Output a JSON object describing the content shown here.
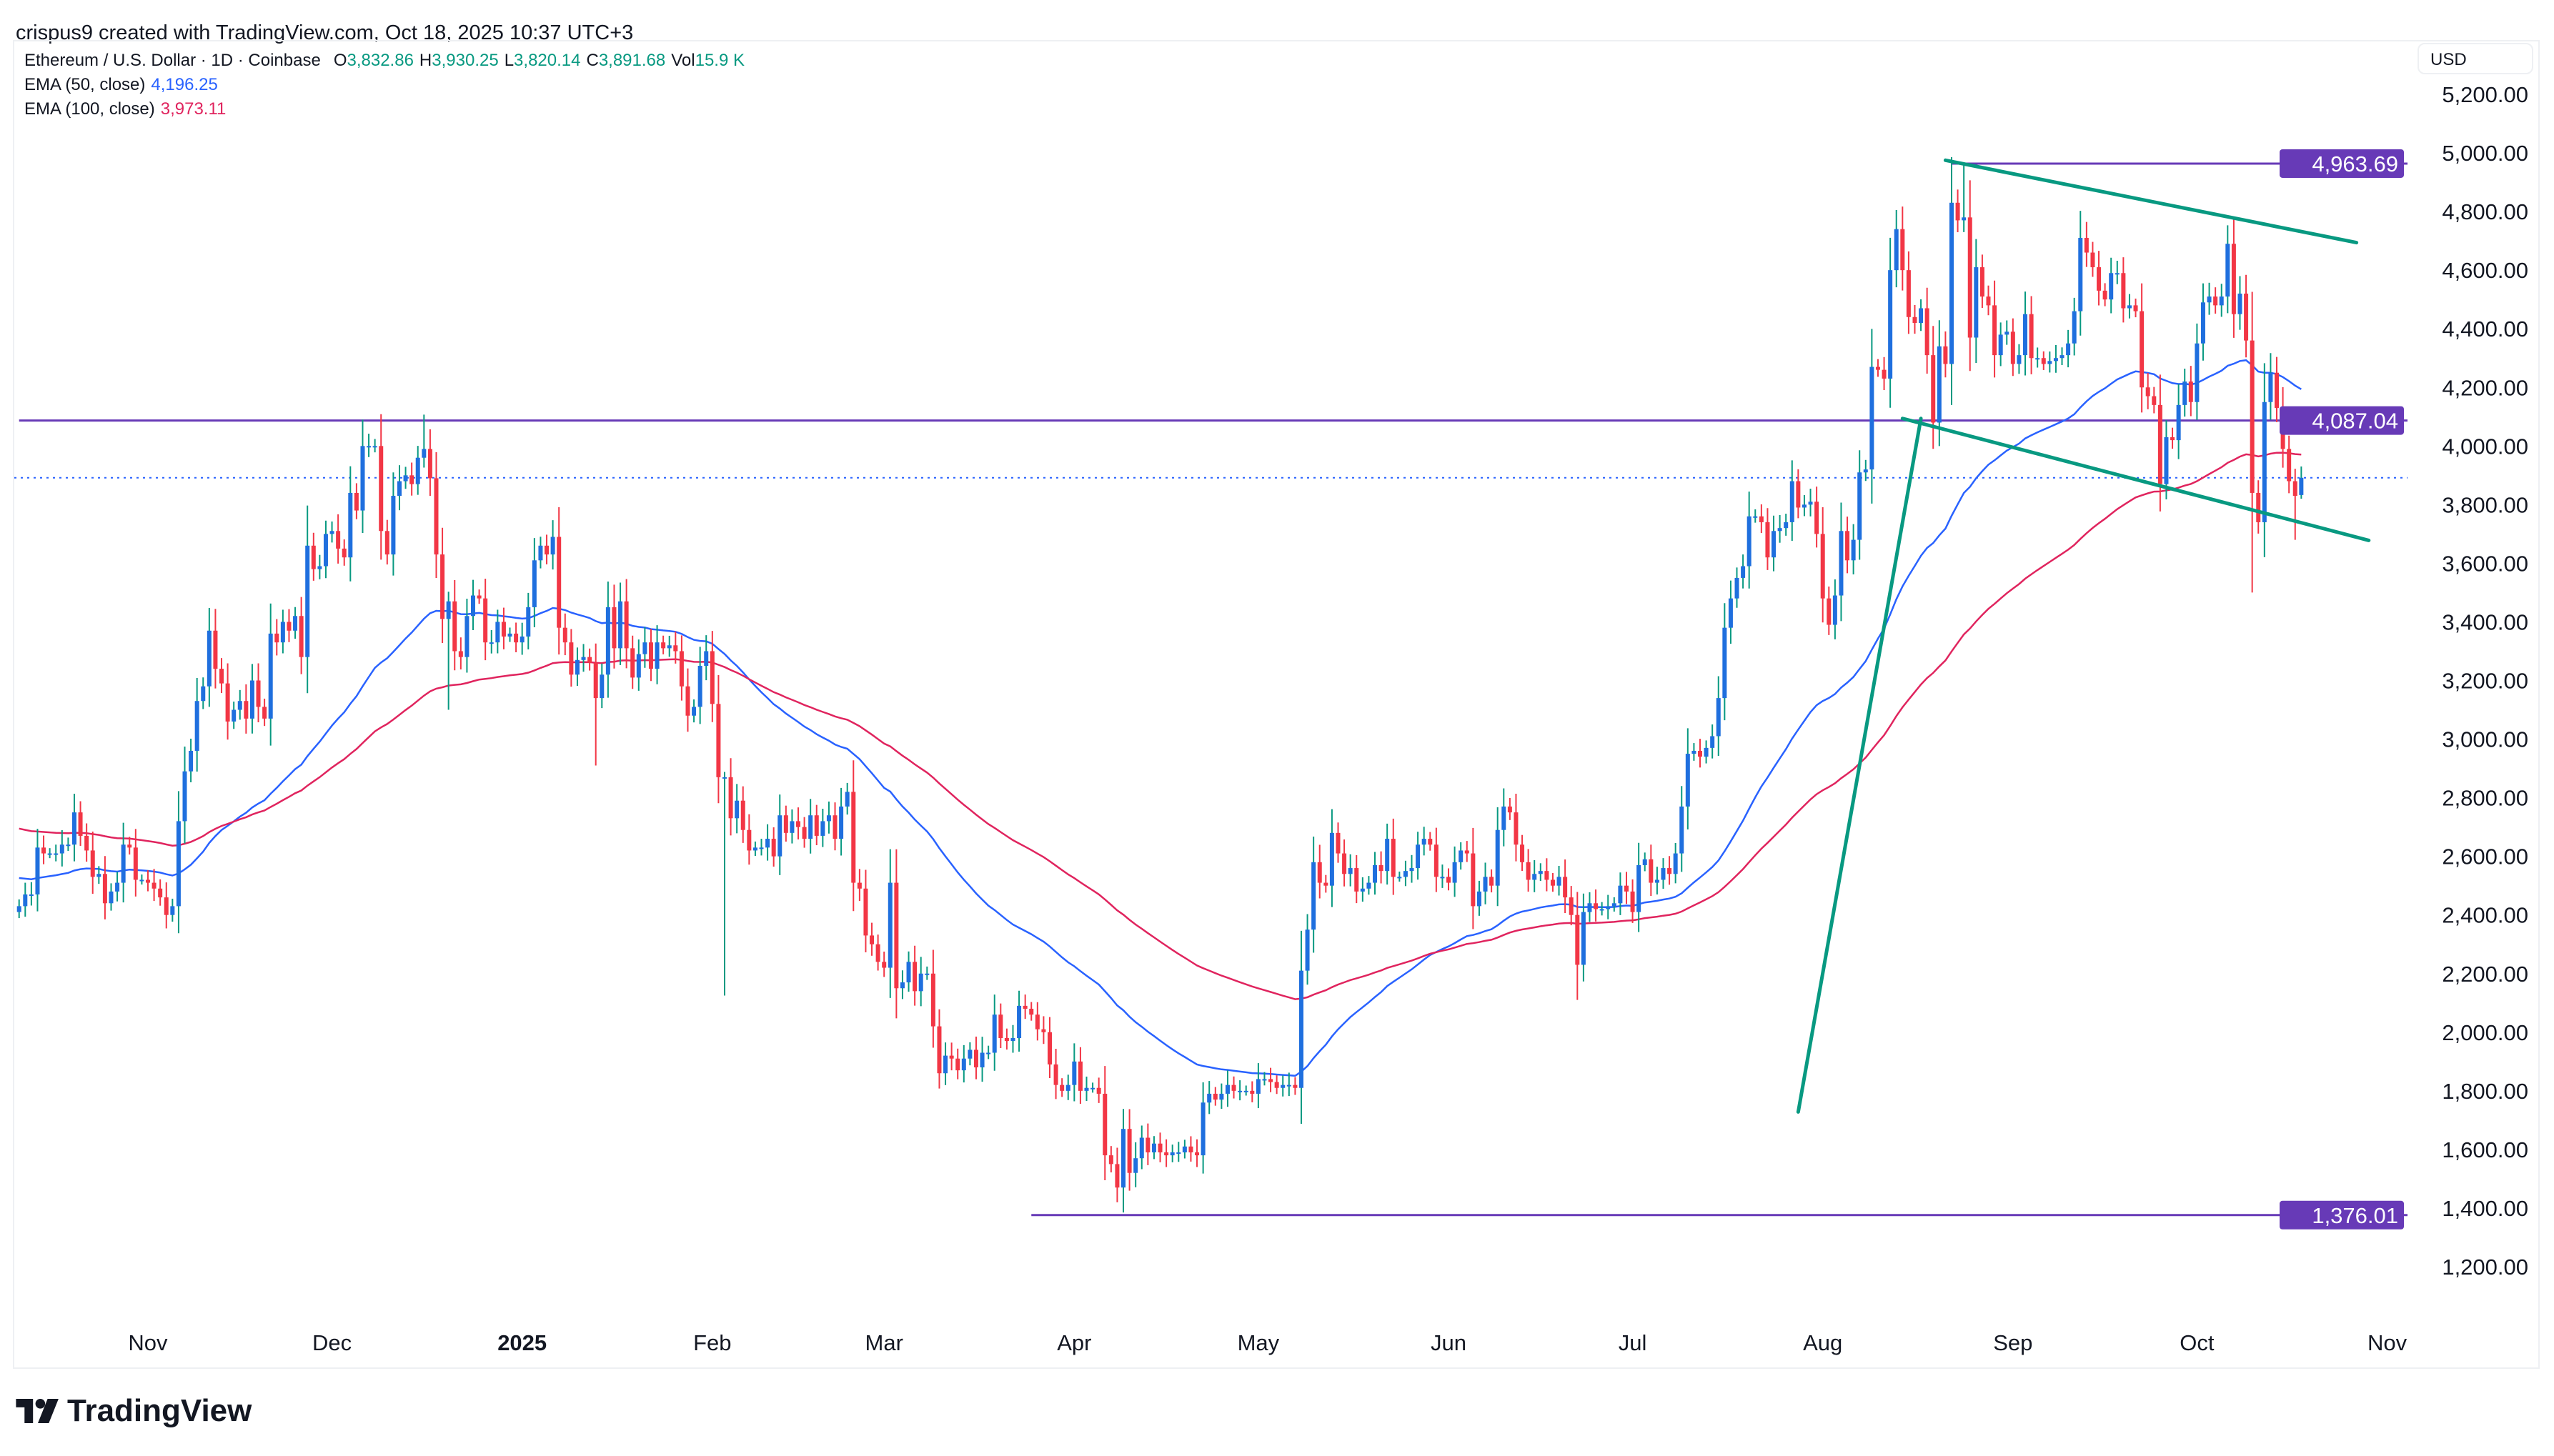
{
  "credit": "crispus9 created with TradingView.com, Oct 18, 2025 10:37 UTC+3",
  "legend": {
    "symbol": "Ethereum / U.S. Dollar · 1D · Coinbase",
    "o_label": "O",
    "o": "3,832.86",
    "h_label": "H",
    "h": "3,930.25",
    "l_label": "L",
    "l": "3,820.14",
    "c_label": "C",
    "c": "3,891.68",
    "vol_label": "Vol",
    "vol": "15.9 K",
    "ema50_label": "EMA (50, close)",
    "ema50": "4,196.25",
    "ema100_label": "EMA (100, close)",
    "ema100": "3,973.11"
  },
  "currency": "USD",
  "logo": "TradingView",
  "colors": {
    "up_body": "#1f6fde",
    "up_wick": "#089981",
    "down": "#f23645",
    "ema50": "#2962ff",
    "ema100": "#e0245e",
    "level": "#673ab7",
    "trendline": "#089981"
  },
  "chart_data": {
    "type": "candlestick",
    "title": "Ethereum / U.S. Dollar · 1D · Coinbase",
    "interval": "1D",
    "start_date": "2024-10-11",
    "closes": [
      2430,
      2470,
      2470,
      2630,
      2610,
      2610,
      2610,
      2640,
      2640,
      2750,
      2670,
      2620,
      2530,
      2540,
      2440,
      2480,
      2510,
      2640,
      2630,
      2520,
      2520,
      2510,
      2490,
      2460,
      2400,
      2430,
      2720,
      2890,
      2960,
      3130,
      3180,
      3370,
      3240,
      3190,
      3060,
      3100,
      3130,
      3070,
      3200,
      3110,
      3070,
      3360,
      3330,
      3400,
      3370,
      3420,
      3280,
      3660,
      3580,
      3590,
      3700,
      3710,
      3650,
      3620,
      3840,
      3780,
      4000,
      4000,
      4000,
      3710,
      3630,
      3830,
      3880,
      3900,
      3870,
      3960,
      3990,
      3890,
      3630,
      3410,
      3470,
      3300,
      3280,
      3420,
      3490,
      3480,
      3330,
      3330,
      3400,
      3350,
      3360,
      3330,
      3350,
      3450,
      3610,
      3660,
      3630,
      3690,
      3380,
      3330,
      3220,
      3270,
      3280,
      3260,
      3140,
      3220,
      3450,
      3310,
      3470,
      3310,
      3210,
      3290,
      3330,
      3240,
      3330,
      3310,
      3320,
      3300,
      3180,
      3080,
      3110,
      3250,
      3300,
      3120,
      2870,
      2870,
      2730,
      2790,
      2690,
      2620,
      2630,
      2630,
      2660,
      2600,
      2740,
      2680,
      2720,
      2700,
      2660,
      2740,
      2670,
      2720,
      2740,
      2660,
      2770,
      2820,
      2510,
      2490,
      2330,
      2300,
      2240,
      2220,
      2510,
      2150,
      2170,
      2240,
      2140,
      2200,
      2200,
      2020,
      1860,
      1920,
      1910,
      1870,
      1910,
      1940,
      1880,
      1930,
      1930,
      2060,
      1980,
      1970,
      1980,
      2090,
      2080,
      2060,
      2010,
      2000,
      1890,
      1820,
      1800,
      1820,
      1900,
      1800,
      1810,
      1810,
      1790,
      1580,
      1550,
      1470,
      1670,
      1520,
      1570,
      1640,
      1590,
      1620,
      1590,
      1580,
      1590,
      1590,
      1610,
      1590,
      1580,
      1760,
      1790,
      1770,
      1790,
      1820,
      1800,
      1800,
      1800,
      1790,
      1840,
      1840,
      1830,
      1810,
      1820,
      1820,
      1810,
      2210,
      2350,
      2580,
      2510,
      2500,
      2680,
      2610,
      2540,
      2560,
      2480,
      2490,
      2510,
      2570,
      2550,
      2660,
      2530,
      2530,
      2550,
      2560,
      2640,
      2660,
      2640,
      2530,
      2530,
      2510,
      2580,
      2620,
      2610,
      2430,
      2480,
      2530,
      2500,
      2690,
      2770,
      2750,
      2640,
      2580,
      2520,
      2540,
      2550,
      2520,
      2500,
      2530,
      2460,
      2400,
      2230,
      2410,
      2440,
      2420,
      2420,
      2430,
      2440,
      2500,
      2480,
      2410,
      2570,
      2590,
      2510,
      2520,
      2560,
      2540,
      2610,
      2770,
      2950,
      2960,
      2940,
      2970,
      3010,
      3140,
      3380,
      3480,
      3550,
      3590,
      3760,
      3760,
      3740,
      3620,
      3710,
      3720,
      3740,
      3880,
      3790,
      3800,
      3810,
      3700,
      3480,
      3390,
      3490,
      3710,
      3610,
      3680,
      3910,
      3920,
      4270,
      4260,
      4230,
      4600,
      4740,
      4600,
      4440,
      4420,
      4470,
      4310,
      4080,
      4340,
      4280,
      4830,
      4770,
      4780,
      4370,
      4610,
      4510,
      4480,
      4310,
      4380,
      4390,
      4280,
      4310,
      4450,
      4300,
      4300,
      4280,
      4290,
      4300,
      4310,
      4350,
      4460,
      4710,
      4660,
      4610,
      4530,
      4500,
      4590,
      4590,
      4470,
      4480,
      4460,
      4200,
      4170,
      4140,
      3870,
      4030,
      4020,
      4140,
      4220,
      4150,
      4350,
      4490,
      4510,
      4480,
      4510,
      4690,
      4450,
      4520,
      4360,
      3840,
      3740,
      4150,
      4250,
      4130,
      3990,
      3880,
      3830,
      3891.68
    ],
    "last_candle": {
      "open": 3832.86,
      "high": 3930.25,
      "low": 3820.14,
      "close": 3891.68
    },
    "notable_extremes": [
      {
        "date": "2024-12-06",
        "high": 4090
      },
      {
        "date": "2024-12-16",
        "high": 4107
      },
      {
        "date": "2024-12-20",
        "low": 3100
      },
      {
        "date": "2025-01-13",
        "low": 2910
      },
      {
        "date": "2025-02-03",
        "low": 2125
      },
      {
        "date": "2025-04-09",
        "low": 1385
      },
      {
        "date": "2025-06-22",
        "low": 2110
      },
      {
        "date": "2025-08-02",
        "low": 3355
      },
      {
        "date": "2025-08-24",
        "high": 4963.69
      },
      {
        "date": "2025-10-10",
        "low": 3500
      },
      {
        "date": "2025-10-17",
        "low": 3680
      }
    ],
    "indicators": [
      {
        "name": "EMA (50, close)",
        "period": 50,
        "last": 4196.25
      },
      {
        "name": "EMA (100, close)",
        "period": 100,
        "last": 3973.11
      }
    ],
    "levels": [
      {
        "price": 4963.69,
        "label": "4,963.69",
        "from": "2025-08-22"
      },
      {
        "price": 4087.04,
        "label": "4,087.04",
        "from": "2024-10-11"
      },
      {
        "price": 1376.01,
        "label": "1,376.01",
        "from": "2025-03-25"
      }
    ],
    "last_price_line": 3891.68,
    "trendlines": [
      {
        "from": {
          "date": "2025-08-21",
          "price": 4975
        },
        "to": {
          "date": "2025-10-27",
          "price": 4694
        }
      },
      {
        "from": {
          "date": "2025-08-14",
          "price": 4094
        },
        "to": {
          "date": "2025-10-29",
          "price": 3678
        }
      },
      {
        "from": {
          "date": "2025-07-28",
          "price": 1728
        },
        "to": {
          "date": "2025-08-17",
          "price": 4094
        }
      }
    ],
    "ylim": [
      1100,
      5300
    ],
    "y_ticks": [
      "5,200.00",
      "5,000.00",
      "4,800.00",
      "4,600.00",
      "4,400.00",
      "4,200.00",
      "4,000.00",
      "3,800.00",
      "3,600.00",
      "3,400.00",
      "3,200.00",
      "3,000.00",
      "2,800.00",
      "2,600.00",
      "2,400.00",
      "2,200.00",
      "2,000.00",
      "1,800.00",
      "1,600.00",
      "1,400.00",
      "1,200.00"
    ],
    "x_ticks": [
      {
        "date": "2024-11-01",
        "label": "Nov"
      },
      {
        "date": "2024-12-01",
        "label": "Dec"
      },
      {
        "date": "2025-01-01",
        "label": "2025",
        "bold": true
      },
      {
        "date": "2025-02-01",
        "label": "Feb"
      },
      {
        "date": "2025-03-01",
        "label": "Mar"
      },
      {
        "date": "2025-04-01",
        "label": "Apr"
      },
      {
        "date": "2025-05-01",
        "label": "May"
      },
      {
        "date": "2025-06-01",
        "label": "Jun"
      },
      {
        "date": "2025-07-01",
        "label": "Jul"
      },
      {
        "date": "2025-08-01",
        "label": "Aug"
      },
      {
        "date": "2025-09-01",
        "label": "Sep"
      },
      {
        "date": "2025-10-01",
        "label": "Oct"
      },
      {
        "date": "2025-11-01",
        "label": "Nov"
      }
    ],
    "grid": false
  }
}
